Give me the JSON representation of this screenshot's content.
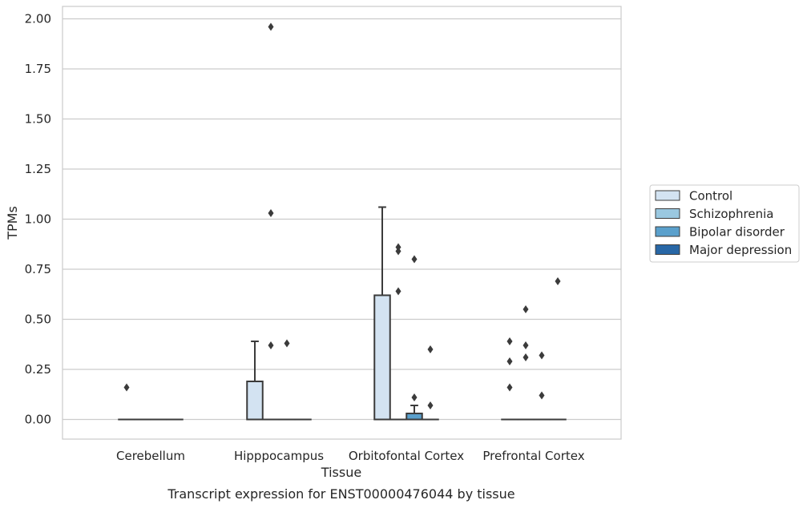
{
  "chart_data": {
    "type": "box",
    "xlabel": "Tissue",
    "ylabel": "TPMs",
    "caption": "Transcript expression for ENST00000476044 by tissue",
    "ylim": [
      -0.095,
      2.06
    ],
    "yticks": [
      0.0,
      0.25,
      0.5,
      0.75,
      1.0,
      1.25,
      1.5,
      1.75,
      2.0
    ],
    "ytick_labels": [
      "0.00",
      "0.25",
      "0.50",
      "0.75",
      "1.00",
      "1.25",
      "1.50",
      "1.75",
      "2.00"
    ],
    "grid": true,
    "legend_position": "right",
    "categories": [
      "Cerebellum",
      "Hipppocampus",
      "Orbitofontal Cortex",
      "Prefrontal Cortex"
    ],
    "series": [
      {
        "name": "Control",
        "color": "#d3e3f2",
        "boxes": [
          {
            "category": "Cerebellum",
            "q1": 0,
            "median": 0,
            "q3": 0,
            "whisker_low": 0,
            "whisker_high": 0,
            "outliers": [
              0.16
            ]
          },
          {
            "category": "Hipppocampus",
            "q1": 0,
            "median": 0,
            "q3": 0.19,
            "whisker_low": 0,
            "whisker_high": 0.39,
            "outliers": []
          },
          {
            "category": "Orbitofontal Cortex",
            "q1": 0,
            "median": 0,
            "q3": 0.62,
            "whisker_low": 0,
            "whisker_high": 1.06,
            "outliers": []
          },
          {
            "category": "Prefrontal Cortex",
            "q1": 0,
            "median": 0,
            "q3": 0,
            "whisker_low": 0,
            "whisker_high": 0,
            "outliers": [
              0.39,
              0.29,
              0.16
            ]
          }
        ]
      },
      {
        "name": "Schizophrenia",
        "color": "#9ac8e0",
        "boxes": [
          {
            "category": "Cerebellum",
            "q1": 0,
            "median": 0,
            "q3": 0,
            "whisker_low": 0,
            "whisker_high": 0,
            "outliers": []
          },
          {
            "category": "Hipppocampus",
            "q1": 0,
            "median": 0,
            "q3": 0,
            "whisker_low": 0,
            "whisker_high": 0,
            "outliers": [
              1.96,
              1.03,
              0.37
            ]
          },
          {
            "category": "Orbitofontal Cortex",
            "q1": 0,
            "median": 0,
            "q3": 0,
            "whisker_low": 0,
            "whisker_high": 0,
            "outliers": [
              0.86,
              0.84,
              0.64
            ]
          },
          {
            "category": "Prefrontal Cortex",
            "q1": 0,
            "median": 0,
            "q3": 0,
            "whisker_low": 0,
            "whisker_high": 0,
            "outliers": [
              0.55,
              0.37,
              0.31
            ]
          }
        ]
      },
      {
        "name": "Bipolar disorder",
        "color": "#5aa0cc",
        "boxes": [
          {
            "category": "Cerebellum",
            "q1": 0,
            "median": 0,
            "q3": 0,
            "whisker_low": 0,
            "whisker_high": 0,
            "outliers": []
          },
          {
            "category": "Hipppocampus",
            "q1": 0,
            "median": 0,
            "q3": 0,
            "whisker_low": 0,
            "whisker_high": 0,
            "outliers": [
              0.38
            ]
          },
          {
            "category": "Orbitofontal Cortex",
            "q1": 0,
            "median": 0,
            "q3": 0.03,
            "whisker_low": 0,
            "whisker_high": 0.07,
            "outliers": [
              0.8,
              0.11
            ]
          },
          {
            "category": "Prefrontal Cortex",
            "q1": 0,
            "median": 0,
            "q3": 0,
            "whisker_low": 0,
            "whisker_high": 0,
            "outliers": [
              0.32,
              0.12
            ]
          }
        ]
      },
      {
        "name": "Major depression",
        "color": "#2867a6",
        "boxes": [
          {
            "category": "Cerebellum",
            "q1": 0,
            "median": 0,
            "q3": 0,
            "whisker_low": 0,
            "whisker_high": 0,
            "outliers": []
          },
          {
            "category": "Hipppocampus",
            "q1": 0,
            "median": 0,
            "q3": 0,
            "whisker_low": 0,
            "whisker_high": 0,
            "outliers": []
          },
          {
            "category": "Orbitofontal Cortex",
            "q1": 0,
            "median": 0,
            "q3": 0,
            "whisker_low": 0,
            "whisker_high": 0,
            "outliers": [
              0.35,
              0.07
            ]
          },
          {
            "category": "Prefrontal Cortex",
            "q1": 0,
            "median": 0,
            "q3": 0,
            "whisker_low": 0,
            "whisker_high": 0,
            "outliers": [
              0.69
            ]
          }
        ]
      }
    ]
  }
}
